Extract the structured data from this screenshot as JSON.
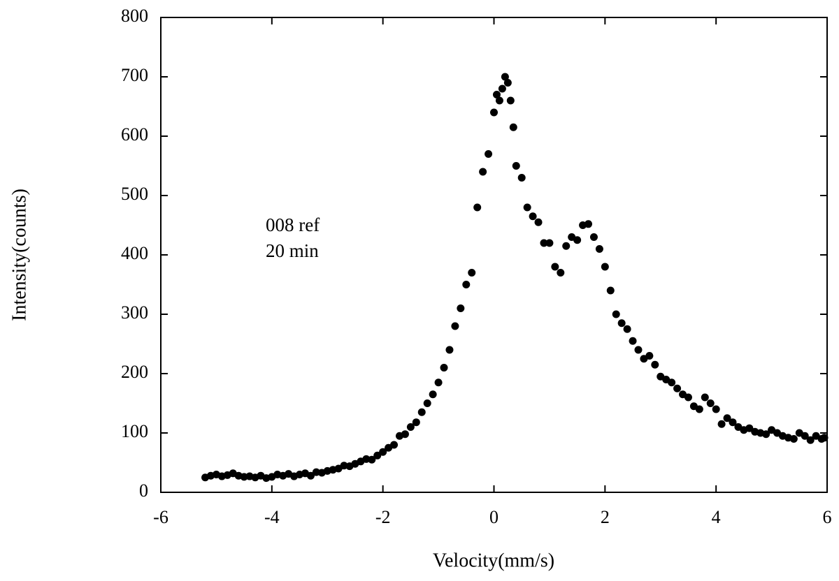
{
  "chart_data": {
    "type": "scatter",
    "xlabel": "Velocity(mm/s)",
    "ylabel": "Intensity(counts)",
    "annotations": [
      "008 ref",
      "20 min"
    ],
    "xlim": [
      -6,
      6
    ],
    "xticks": [
      -6,
      -4,
      -2,
      0,
      2,
      4,
      6
    ],
    "ylim": [
      0,
      800
    ],
    "yticks": [
      0,
      100,
      200,
      300,
      400,
      500,
      600,
      700,
      800
    ],
    "series": [
      {
        "color": "#000000",
        "x": [
          -5.2,
          -5.1,
          -5.0,
          -4.9,
          -4.8,
          -4.7,
          -4.6,
          -4.5,
          -4.4,
          -4.3,
          -4.2,
          -4.1,
          -4.0,
          -3.9,
          -3.8,
          -3.7,
          -3.6,
          -3.5,
          -3.4,
          -3.3,
          -3.2,
          -3.1,
          -3.0,
          -2.9,
          -2.8,
          -2.7,
          -2.6,
          -2.5,
          -2.4,
          -2.3,
          -2.2,
          -2.1,
          -2.0,
          -1.9,
          -1.8,
          -1.7,
          -1.6,
          -1.5,
          -1.4,
          -1.3,
          -1.2,
          -1.1,
          -1.0,
          -0.9,
          -0.8,
          -0.7,
          -0.6,
          -0.5,
          -0.4,
          -0.3,
          -0.2,
          -0.1,
          0.0,
          0.05,
          0.1,
          0.15,
          0.2,
          0.25,
          0.3,
          0.35,
          0.4,
          0.5,
          0.6,
          0.7,
          0.8,
          0.9,
          1.0,
          1.1,
          1.2,
          1.3,
          1.4,
          1.5,
          1.6,
          1.7,
          1.8,
          1.9,
          2.0,
          2.1,
          2.2,
          2.3,
          2.4,
          2.5,
          2.6,
          2.7,
          2.8,
          2.9,
          3.0,
          3.1,
          3.2,
          3.3,
          3.4,
          3.5,
          3.6,
          3.7,
          3.8,
          3.9,
          4.0,
          4.1,
          4.2,
          4.3,
          4.4,
          4.5,
          4.6,
          4.7,
          4.8,
          4.9,
          5.0,
          5.1,
          5.2,
          5.3,
          5.4,
          5.5,
          5.6,
          5.7,
          5.8,
          5.9,
          5.95
        ],
        "values": [
          25,
          28,
          30,
          27,
          29,
          32,
          28,
          26,
          27,
          25,
          28,
          24,
          26,
          30,
          28,
          31,
          27,
          30,
          32,
          28,
          34,
          33,
          36,
          38,
          40,
          45,
          44,
          48,
          52,
          56,
          55,
          62,
          68,
          75,
          80,
          95,
          98,
          110,
          118,
          135,
          150,
          165,
          185,
          210,
          240,
          280,
          310,
          350,
          370,
          480,
          540,
          570,
          640,
          670,
          660,
          680,
          700,
          690,
          660,
          615,
          550,
          530,
          480,
          465,
          455,
          420,
          420,
          380,
          370,
          415,
          430,
          425,
          450,
          452,
          430,
          410,
          380,
          340,
          300,
          285,
          275,
          255,
          240,
          225,
          230,
          215,
          195,
          190,
          185,
          175,
          165,
          160,
          145,
          140,
          160,
          150,
          140,
          115,
          125,
          118,
          110,
          105,
          108,
          102,
          100,
          98,
          105,
          100,
          95,
          92,
          90,
          100,
          95,
          88,
          95,
          90,
          92
        ]
      }
    ]
  }
}
